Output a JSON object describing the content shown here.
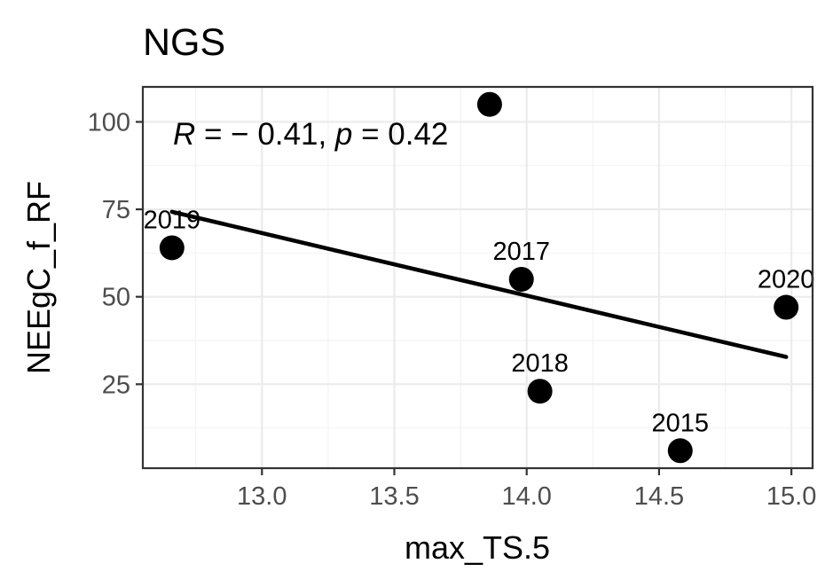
{
  "chart_data": {
    "type": "scatter",
    "title": "NGS",
    "xlabel": "max_TS.5",
    "ylabel": "NEEgC_f_RF",
    "xlim": [
      12.55,
      15.08
    ],
    "ylim": [
      1,
      110
    ],
    "x_major_ticks": [
      13.0,
      13.5,
      14.0,
      14.5,
      15.0
    ],
    "x_tick_labels": [
      "13.0",
      "13.5",
      "14.0",
      "14.5",
      "15.0"
    ],
    "x_minor_ticks": [
      12.75,
      13.25,
      13.75,
      14.25,
      14.75
    ],
    "y_major_ticks": [
      25,
      50,
      75,
      100
    ],
    "y_tick_labels": [
      "25",
      "50",
      "75",
      "100"
    ],
    "y_minor_ticks": [
      12.5,
      37.5,
      62.5,
      87.5
    ],
    "grid": true,
    "points": [
      {
        "x": 12.66,
        "y": 64,
        "label": "2019"
      },
      {
        "x": 13.86,
        "y": 105,
        "label": ""
      },
      {
        "x": 13.98,
        "y": 55,
        "label": "2017"
      },
      {
        "x": 14.05,
        "y": 23,
        "label": "2018"
      },
      {
        "x": 14.58,
        "y": 6,
        "label": "2015"
      },
      {
        "x": 14.98,
        "y": 47,
        "label": "2020"
      }
    ],
    "trendline": {
      "x": [
        12.66,
        14.98
      ],
      "y": [
        74.3,
        32.8
      ]
    },
    "annotation": {
      "r_symbol": "R",
      "r_text": " = − 0.41, ",
      "p_symbol": "p",
      "p_text": " = 0.42"
    }
  }
}
